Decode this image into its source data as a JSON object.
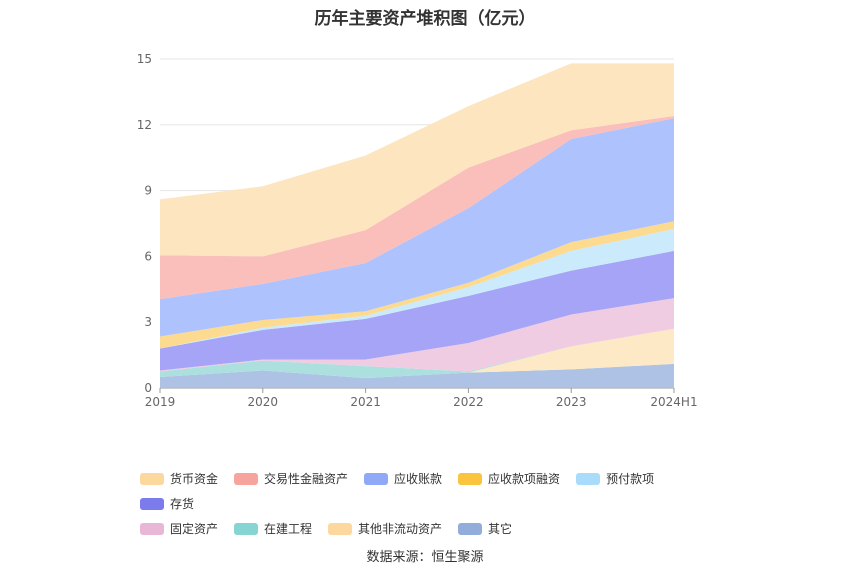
{
  "page": {
    "title": "历年主要资产堆积图（亿元）",
    "source": "数据来源：恒生聚源"
  },
  "chart_data": {
    "type": "area",
    "stacked": true,
    "title": "历年主要资产堆积图（亿元）",
    "categories": [
      "2019",
      "2020",
      "2021",
      "2022",
      "2023",
      "2024H1"
    ],
    "ylim": [
      0,
      15
    ],
    "yticks": [
      0,
      3,
      6,
      9,
      12,
      15
    ],
    "grid": true,
    "legend_position": "bottom",
    "series": [
      {
        "name": "其它",
        "color": "#a9bfe3",
        "values": [
          0.5,
          0.8,
          0.45,
          0.7,
          0.85,
          1.1
        ]
      },
      {
        "name": "其他非流动资产",
        "color": "#fde8c2",
        "values": [
          0.0,
          0.0,
          0.0,
          0.0,
          1.05,
          1.6
        ]
      },
      {
        "name": "在建工程",
        "color": "#a8dedd",
        "values": [
          0.25,
          0.45,
          0.55,
          0.05,
          0.0,
          0.0
        ]
      },
      {
        "name": "固定资产",
        "color": "#eec9e0",
        "values": [
          0.05,
          0.05,
          0.3,
          1.3,
          1.45,
          1.4
        ]
      },
      {
        "name": "存货",
        "color": "#a09ff5",
        "values": [
          1.0,
          1.35,
          1.85,
          2.15,
          2.0,
          2.15
        ]
      },
      {
        "name": "预付款项",
        "color": "#c8e9fc",
        "values": [
          0.0,
          0.1,
          0.15,
          0.4,
          0.9,
          1.0
        ]
      },
      {
        "name": "应收款项融资",
        "color": "#fcd98a",
        "values": [
          0.55,
          0.35,
          0.2,
          0.2,
          0.4,
          0.35
        ]
      },
      {
        "name": "应收账款",
        "color": "#aabffd",
        "values": [
          1.7,
          1.65,
          2.2,
          3.4,
          4.7,
          4.7
        ]
      },
      {
        "name": "交易性金融资产",
        "color": "#fbbcb7",
        "values": [
          2.0,
          1.25,
          1.5,
          1.85,
          0.4,
          0.1
        ]
      },
      {
        "name": "货币资金",
        "color": "#fde4bd",
        "values": [
          2.55,
          3.2,
          3.4,
          2.8,
          3.05,
          2.4
        ]
      }
    ],
    "legend": [
      {
        "name": "货币资金",
        "color": "#fdd89e"
      },
      {
        "name": "交易性金融资产",
        "color": "#f7a59c"
      },
      {
        "name": "应收账款",
        "color": "#8fa8f8"
      },
      {
        "name": "应收款项融资",
        "color": "#fbc43e"
      },
      {
        "name": "预付款项",
        "color": "#a9dcfb"
      },
      {
        "name": "存货",
        "color": "#7b7bee"
      },
      {
        "name": "固定资产",
        "color": "#e8b7d6"
      },
      {
        "name": "在建工程",
        "color": "#86d4d4"
      },
      {
        "name": "其他非流动资产",
        "color": "#fdd89e"
      },
      {
        "name": "其它",
        "color": "#92add9"
      }
    ]
  }
}
